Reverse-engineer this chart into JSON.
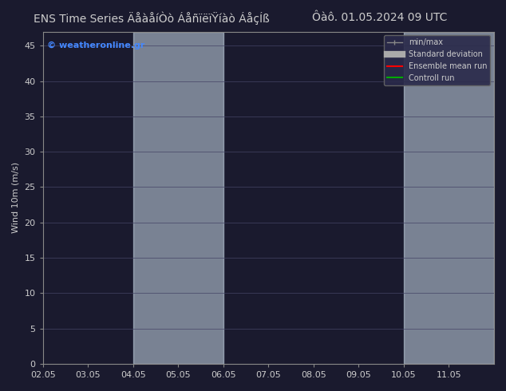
{
  "title_left": "ENS Time Series ÄåàåíÒò ÁåñïëïŸíàò ÁåçÍß",
  "title_right": "Ôàô. 01.05.2024 09 UTC",
  "ylabel": "Wind 10m (m/s)",
  "watermark": "© weatheronline.gr",
  "ylim": [
    0,
    47
  ],
  "yticks": [
    0,
    5,
    10,
    15,
    20,
    25,
    30,
    35,
    40,
    45
  ],
  "xtick_labels": [
    "02.05",
    "03.05",
    "04.05",
    "05.05",
    "06.05",
    "07.05",
    "08.05",
    "09.05",
    "10.05",
    "11.05"
  ],
  "shaded_bands": [
    {
      "xstart": 2.0,
      "xend": 4.0,
      "color": "#d8eaf8"
    },
    {
      "xstart": 8.0,
      "xend": 10.0,
      "color": "#d8eaf8"
    }
  ],
  "bg_color": "#1a1a2e",
  "plot_bg_color": "#1a1a2e",
  "title_fontsize": 10,
  "axis_fontsize": 8,
  "watermark_color": "#4488ff",
  "x_range": [
    0,
    10
  ],
  "text_color": "#cccccc",
  "grid_color": "#444466",
  "spine_color": "#888888"
}
